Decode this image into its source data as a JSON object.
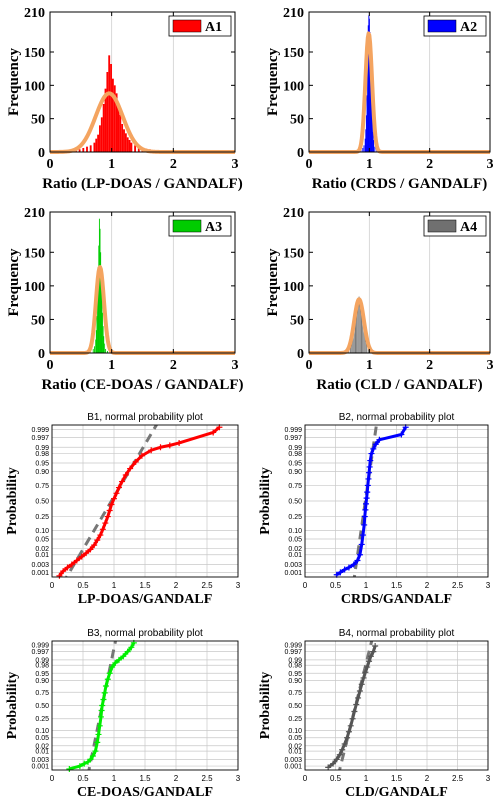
{
  "chart_data": [
    {
      "type": "bar",
      "panel": "A1",
      "legend": "A1",
      "color": "#ff0000",
      "fit_color": "#f4a460",
      "xlabel": "Ratio (LP-DOAS / GANDALF)",
      "ylabel": "Frequency",
      "xlim": [
        0,
        3
      ],
      "ylim": [
        0,
        210
      ],
      "xticks": [
        "0",
        "1",
        "2",
        "3"
      ],
      "yticks": [
        "0",
        "50",
        "100",
        "150",
        "210"
      ],
      "grid": true,
      "legend_position": "top-right",
      "bin_width": 0.03,
      "x": [
        0.3,
        0.36,
        0.42,
        0.48,
        0.54,
        0.6,
        0.66,
        0.72,
        0.75,
        0.78,
        0.81,
        0.84,
        0.87,
        0.9,
        0.93,
        0.96,
        0.99,
        1.02,
        1.05,
        1.08,
        1.11,
        1.14,
        1.17,
        1.2,
        1.23,
        1.26,
        1.29,
        1.32,
        1.38,
        1.44,
        1.5,
        1.56,
        1.62,
        1.68,
        1.74,
        1.8,
        1.86,
        1.92,
        1.98,
        2.04,
        2.1,
        2.16,
        2.4,
        2.7
      ],
      "values": [
        1,
        2,
        3,
        4,
        6,
        8,
        10,
        14,
        20,
        26,
        40,
        52,
        72,
        95,
        120,
        145,
        132,
        110,
        100,
        88,
        70,
        56,
        42,
        34,
        28,
        22,
        18,
        14,
        10,
        8,
        6,
        5,
        4,
        3,
        3,
        2,
        2,
        2,
        1,
        1,
        1,
        1,
        1,
        1
      ],
      "fit": {
        "mean": 0.96,
        "peak": 88,
        "sd": 0.22
      }
    },
    {
      "type": "bar",
      "panel": "A2",
      "legend": "A2",
      "color": "#0000ff",
      "fit_color": "#f4a460",
      "xlabel": "Ratio (CRDS / GANDALF)",
      "ylabel": "Frequency",
      "xlim": [
        0,
        3
      ],
      "ylim": [
        0,
        210
      ],
      "xticks": [
        "0",
        "1",
        "2",
        "3"
      ],
      "yticks": [
        "0",
        "50",
        "100",
        "150",
        "210"
      ],
      "grid": true,
      "legend_position": "top-right",
      "bin_width": 0.012,
      "x": [
        0.6,
        0.8,
        0.86,
        0.89,
        0.91,
        0.93,
        0.94,
        0.95,
        0.96,
        0.97,
        0.98,
        0.99,
        1.0,
        1.01,
        1.02,
        1.03,
        1.04,
        1.05,
        1.06,
        1.07,
        1.09,
        1.12,
        1.2,
        1.4,
        1.6
      ],
      "values": [
        1,
        2,
        3,
        6,
        10,
        20,
        34,
        55,
        85,
        140,
        190,
        205,
        200,
        180,
        150,
        110,
        80,
        50,
        30,
        18,
        8,
        4,
        2,
        1,
        1
      ],
      "fit": {
        "mean": 0.99,
        "peak": 178,
        "sd": 0.055
      }
    },
    {
      "type": "bar",
      "panel": "A3",
      "legend": "A3",
      "color": "#00cc00",
      "fit_color": "#f4a460",
      "xlabel": "Ratio (CE-DOAS / GANDALF)",
      "ylabel": "Frequency",
      "xlim": [
        0,
        3
      ],
      "ylim": [
        0,
        210
      ],
      "xticks": [
        "0",
        "1",
        "2",
        "3"
      ],
      "yticks": [
        "0",
        "50",
        "100",
        "150",
        "210"
      ],
      "grid": true,
      "legend_position": "top-right",
      "bin_width": 0.012,
      "x": [
        0.3,
        0.55,
        0.65,
        0.7,
        0.72,
        0.74,
        0.75,
        0.76,
        0.77,
        0.78,
        0.79,
        0.8,
        0.81,
        0.82,
        0.83,
        0.84,
        0.85,
        0.86,
        0.87,
        0.88,
        0.9,
        0.93,
        1.0,
        1.2
      ],
      "values": [
        1,
        2,
        3,
        6,
        10,
        20,
        34,
        55,
        80,
        120,
        160,
        200,
        185,
        150,
        120,
        90,
        60,
        40,
        25,
        14,
        6,
        3,
        2,
        1
      ],
      "fit": {
        "mean": 0.81,
        "peak": 128,
        "sd": 0.065
      }
    },
    {
      "type": "bar",
      "panel": "A4",
      "legend": "A4",
      "color": "#707070",
      "fit_color": "#f4a460",
      "xlabel": "Ratio (CLD / GANDALF)",
      "ylabel": "Frequency",
      "xlim": [
        0,
        3
      ],
      "ylim": [
        0,
        210
      ],
      "xticks": [
        "0",
        "1",
        "2",
        "3"
      ],
      "yticks": [
        "0",
        "50",
        "100",
        "150",
        "210"
      ],
      "grid": true,
      "legend_position": "top-right",
      "bin_width": 0.015,
      "x": [
        0.55,
        0.62,
        0.66,
        0.69,
        0.71,
        0.73,
        0.75,
        0.77,
        0.79,
        0.81,
        0.83,
        0.85,
        0.87,
        0.89,
        0.91,
        0.93,
        0.95,
        0.98,
        1.02,
        1.1
      ],
      "values": [
        1,
        3,
        6,
        10,
        16,
        24,
        36,
        50,
        65,
        78,
        84,
        80,
        70,
        55,
        40,
        26,
        15,
        8,
        3,
        1
      ],
      "fit": {
        "mean": 0.83,
        "peak": 80,
        "sd": 0.08
      }
    },
    {
      "type": "scatter",
      "panel": "B1",
      "title": "B1, normal probability plot",
      "xlabel": "LP-DOAS/GANDALF",
      "ylabel": "Probability",
      "color": "#ff0000",
      "xlim": [
        0,
        3
      ],
      "xticks": [
        "0",
        "0.5",
        "1",
        "1.5",
        "2",
        "2.5",
        "3"
      ],
      "yticks": [
        "0.001",
        "0.003",
        "0.01",
        "0.02",
        "0.05",
        "0.10",
        "0.25",
        "0.50",
        "0.75",
        "0.90",
        "0.95",
        "0.98",
        "0.99",
        "0.997",
        "0.999"
      ],
      "ytick_values": [
        0.001,
        0.003,
        0.01,
        0.02,
        0.05,
        0.1,
        0.25,
        0.5,
        0.75,
        0.9,
        0.95,
        0.98,
        0.99,
        0.997,
        0.999
      ],
      "grid": true,
      "x": [
        0.12,
        0.18,
        0.25,
        0.32,
        0.4,
        0.48,
        0.55,
        0.62,
        0.68,
        0.73,
        0.78,
        0.82,
        0.86,
        0.9,
        0.93,
        0.96,
        1.0,
        1.04,
        1.08,
        1.13,
        1.19,
        1.26,
        1.35,
        1.45,
        1.6,
        1.75,
        1.9,
        2.05,
        2.6,
        2.7
      ],
      "y": [
        0.0006,
        0.0012,
        0.002,
        0.003,
        0.005,
        0.008,
        0.012,
        0.018,
        0.028,
        0.045,
        0.07,
        0.11,
        0.17,
        0.25,
        0.34,
        0.44,
        0.54,
        0.63,
        0.72,
        0.8,
        0.87,
        0.92,
        0.955,
        0.975,
        0.986,
        0.99,
        0.992,
        0.994,
        0.9985,
        0.9993
      ],
      "fit_line": {
        "mean": 0.96,
        "sd": 0.22
      }
    },
    {
      "type": "scatter",
      "panel": "B2",
      "title": "B2, normal probability plot",
      "xlabel": "CRDS/GANDALF",
      "ylabel": "Probability",
      "color": "#0000ff",
      "xlim": [
        0,
        3
      ],
      "xticks": [
        "0",
        "0.5",
        "1",
        "1.5",
        "2",
        "2.5",
        "3"
      ],
      "yticks": [
        "0.001",
        "0.003",
        "0.01",
        "0.02",
        "0.05",
        "0.10",
        "0.25",
        "0.50",
        "0.75",
        "0.90",
        "0.95",
        "0.98",
        "0.99",
        "0.997",
        "0.999"
      ],
      "ytick_values": [
        0.001,
        0.003,
        0.01,
        0.02,
        0.05,
        0.1,
        0.25,
        0.5,
        0.75,
        0.9,
        0.95,
        0.98,
        0.99,
        0.997,
        0.999
      ],
      "grid": true,
      "x": [
        0.52,
        0.58,
        0.65,
        0.72,
        0.8,
        0.86,
        0.9,
        0.93,
        0.95,
        0.97,
        0.98,
        0.99,
        1.0,
        1.01,
        1.02,
        1.03,
        1.04,
        1.05,
        1.06,
        1.07,
        1.09,
        1.12,
        1.16,
        1.22,
        1.58,
        1.65
      ],
      "y": [
        0.0007,
        0.001,
        0.0015,
        0.002,
        0.003,
        0.005,
        0.01,
        0.03,
        0.07,
        0.15,
        0.25,
        0.35,
        0.45,
        0.55,
        0.65,
        0.75,
        0.83,
        0.89,
        0.93,
        0.96,
        0.98,
        0.988,
        0.993,
        0.996,
        0.998,
        0.9993
      ],
      "fit_line": {
        "mean": 0.99,
        "sd": 0.055
      }
    },
    {
      "type": "scatter",
      "panel": "B3",
      "title": "B3, normal probability plot",
      "xlabel": "CE-DOAS/GANDALF",
      "ylabel": "Probability",
      "color": "#00ee00",
      "xlim": [
        0,
        3
      ],
      "xticks": [
        "0",
        "0.5",
        "1",
        "1.5",
        "2",
        "2.5",
        "3"
      ],
      "yticks": [
        "0.001",
        "0.003",
        "0.01",
        "0.02",
        "0.05",
        "0.10",
        "0.25",
        "0.50",
        "0.75",
        "0.90",
        "0.95",
        "0.98",
        "0.99",
        "0.997",
        "0.999"
      ],
      "ytick_values": [
        0.001,
        0.003,
        0.01,
        0.02,
        0.05,
        0.1,
        0.25,
        0.5,
        0.75,
        0.9,
        0.95,
        0.98,
        0.99,
        0.997,
        0.999
      ],
      "grid": true,
      "x": [
        0.28,
        0.45,
        0.52,
        0.58,
        0.62,
        0.66,
        0.7,
        0.73,
        0.75,
        0.77,
        0.79,
        0.8,
        0.81,
        0.83,
        0.85,
        0.87,
        0.9,
        0.93,
        0.97,
        1.02,
        1.08,
        1.15,
        1.22,
        1.28,
        1.32
      ],
      "y": [
        0.0006,
        0.001,
        0.0015,
        0.002,
        0.003,
        0.005,
        0.01,
        0.03,
        0.07,
        0.15,
        0.28,
        0.4,
        0.5,
        0.62,
        0.74,
        0.84,
        0.91,
        0.95,
        0.975,
        0.985,
        0.99,
        0.994,
        0.997,
        0.9985,
        0.9993
      ],
      "fit_line": {
        "mean": 0.81,
        "sd": 0.065
      }
    },
    {
      "type": "scatter",
      "panel": "B4",
      "title": "B4, normal probability plot",
      "xlabel": "CLD/GANDALF",
      "ylabel": "Probability",
      "color": "#555555",
      "xlim": [
        0,
        3
      ],
      "xticks": [
        "0",
        "0.5",
        "1",
        "1.5",
        "2",
        "2.5",
        "3"
      ],
      "yticks": [
        "0.001",
        "0.003",
        "0.01",
        "0.02",
        "0.05",
        "0.10",
        "0.25",
        "0.50",
        "0.75",
        "0.90",
        "0.95",
        "0.98",
        "0.99",
        "0.997",
        "0.999"
      ],
      "ytick_values": [
        0.001,
        0.003,
        0.01,
        0.02,
        0.05,
        0.1,
        0.25,
        0.5,
        0.75,
        0.9,
        0.95,
        0.98,
        0.99,
        0.997,
        0.999
      ],
      "grid": true,
      "x": [
        0.38,
        0.46,
        0.52,
        0.57,
        0.61,
        0.65,
        0.69,
        0.72,
        0.75,
        0.78,
        0.81,
        0.84,
        0.87,
        0.9,
        0.93,
        0.96,
        0.99,
        1.02,
        1.05,
        1.08,
        1.12,
        1.15
      ],
      "y": [
        0.0008,
        0.0015,
        0.003,
        0.006,
        0.012,
        0.025,
        0.05,
        0.09,
        0.15,
        0.25,
        0.38,
        0.52,
        0.65,
        0.77,
        0.86,
        0.92,
        0.955,
        0.975,
        0.988,
        0.994,
        0.997,
        0.9988
      ],
      "fit_line": {
        "mean": 0.83,
        "sd": 0.08
      }
    }
  ]
}
